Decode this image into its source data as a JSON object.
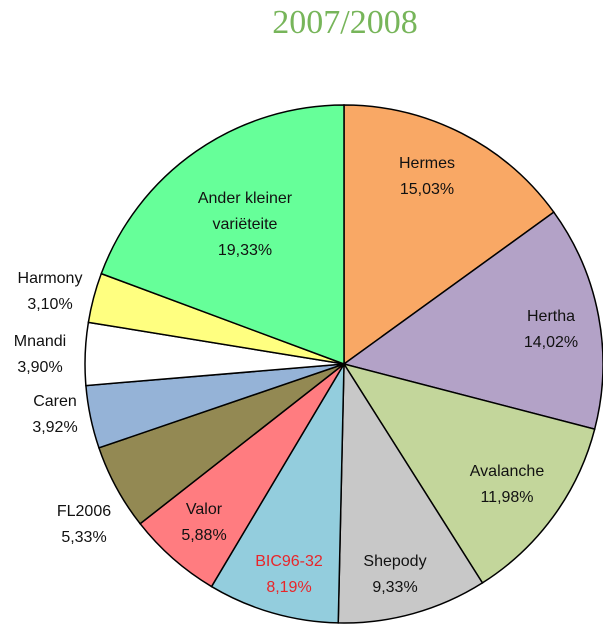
{
  "chart_data": {
    "type": "pie",
    "title": "2007/2008",
    "categories": [
      "Hermes",
      "Hertha",
      "Avalanche",
      "Shepody",
      "BIC96-32",
      "Valor",
      "FL2006",
      "Caren",
      "Mnandi",
      "Harmony",
      "Ander kleiner variëteite"
    ],
    "values": [
      15.03,
      14.02,
      11.98,
      9.33,
      8.19,
      5.88,
      5.33,
      3.92,
      3.9,
      3.1,
      19.33
    ],
    "value_labels": [
      "15,03%",
      "14,02%",
      "11,98%",
      "9,33%",
      "8,19%",
      "5,88%",
      "5,33%",
      "3,92%",
      "3,90%",
      "3,10%",
      "19,33%"
    ],
    "colors": [
      "#f9a865",
      "#b3a2c7",
      "#c3d69b",
      "#c8c8c8",
      "#93cddd",
      "#ff7c80",
      "#938953",
      "#95b3d7",
      "#ffffff",
      "#ffff80",
      "#66ff99"
    ]
  }
}
